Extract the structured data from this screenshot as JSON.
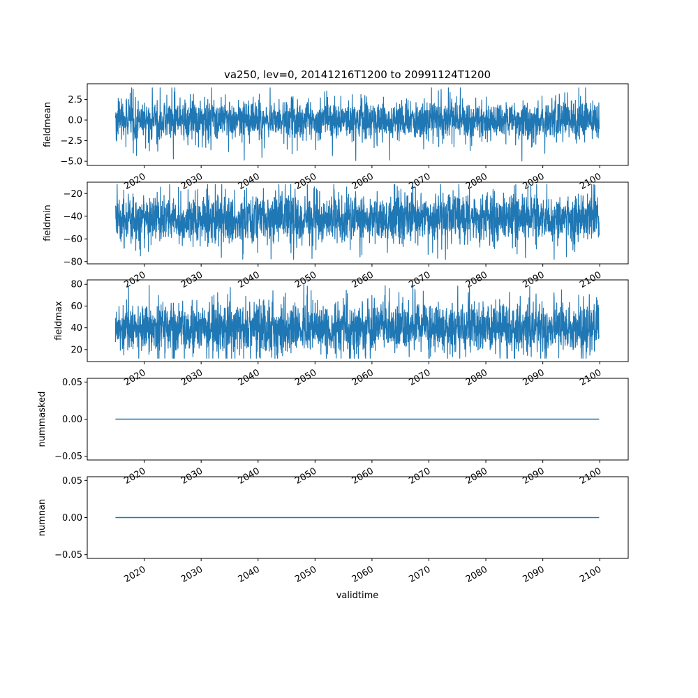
{
  "title": "va250, lev=0, 20141216T1200 to 20991124T1200",
  "colors": {
    "line": "#1f77b4",
    "axes": "#000000",
    "background": "#ffffff"
  },
  "chart_data": {
    "type": "line",
    "title": "va250, lev=0, 20141216T1200 to 20991124T1200",
    "xlabel": "validtime",
    "xlim": [
      "2010-01-01",
      "2104-12-31"
    ],
    "x_start": "2014-12-16T12:00",
    "x_end": "2099-11-24T12:00",
    "x_ticks": [
      "2020",
      "2030",
      "2040",
      "2050",
      "2060",
      "2070",
      "2080",
      "2090",
      "2100"
    ],
    "grid": false,
    "panels": [
      {
        "ylabel": "fieldmean",
        "ylim": [
          -5.5,
          4.4
        ],
        "y_ticks": [
          2.5,
          0.0,
          -2.5,
          -5.0
        ],
        "y_tick_labels": [
          "2.5",
          "0.0",
          "−2.5",
          "−5.0"
        ],
        "series_summary": {
          "typical_range": [
            -2.5,
            2.5
          ],
          "min": -5.1,
          "max": 3.9,
          "center": 0.0
        }
      },
      {
        "ylabel": "fieldmin",
        "ylim": [
          -82,
          -10
        ],
        "y_ticks": [
          -20,
          -40,
          -60,
          -80
        ],
        "y_tick_labels": [
          "−20",
          "−40",
          "−60",
          "−80"
        ],
        "series_summary": {
          "typical_range": [
            -65,
            -20
          ],
          "min": -78,
          "max": -12,
          "center": -42
        }
      },
      {
        "ylabel": "fieldmax",
        "ylim": [
          9,
          84
        ],
        "y_ticks": [
          80,
          60,
          40,
          20
        ],
        "y_tick_labels": [
          "80",
          "60",
          "40",
          "20"
        ],
        "series_summary": {
          "typical_range": [
            18,
            68
          ],
          "min": 12,
          "max": 80,
          "center": 40
        }
      },
      {
        "ylabel": "nummasked",
        "ylim": [
          -0.055,
          0.055
        ],
        "y_ticks": [
          0.05,
          0.0,
          -0.05
        ],
        "y_tick_labels": [
          "0.05",
          "0.00",
          "−0.05"
        ],
        "series_summary": {
          "constant": 0.0
        }
      },
      {
        "ylabel": "numnan",
        "ylim": [
          -0.055,
          0.055
        ],
        "y_ticks": [
          0.05,
          0.0,
          -0.05
        ],
        "y_tick_labels": [
          "0.05",
          "0.00",
          "−0.05"
        ],
        "series_summary": {
          "constant": 0.0
        }
      }
    ]
  }
}
